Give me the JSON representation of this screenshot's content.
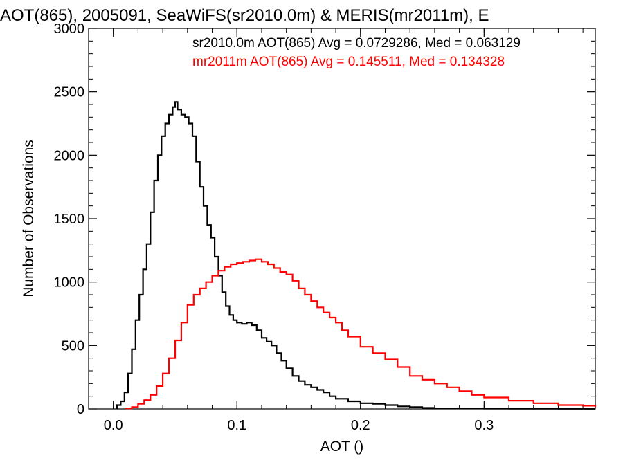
{
  "chart_data": {
    "type": "line",
    "title": "AOT(865), 2005091, SeaWiFS(sr2010.0m) & MERIS(mr2011m), E",
    "xlabel": "AOT ()",
    "ylabel": "Number of Observations",
    "xlim": [
      -0.02,
      0.39
    ],
    "ylim": [
      0,
      3000
    ],
    "xticks": [
      0.0,
      0.1,
      0.2,
      0.3
    ],
    "xtick_labels": [
      "0.0",
      "0.1",
      "0.2",
      "0.3"
    ],
    "yticks": [
      0,
      500,
      1000,
      1500,
      2000,
      2500,
      3000
    ],
    "ytick_labels": [
      "0",
      "500",
      "1000",
      "1500",
      "2000",
      "2500",
      "3000"
    ],
    "grid": false,
    "step": true,
    "series": [
      {
        "name": "sr2010.0m",
        "color": "#000000",
        "annotation": "sr2010.0m AOT(865) Avg = 0.0729286, Med = 0.063129",
        "x": [
          0.003,
          0.006,
          0.009,
          0.012,
          0.015,
          0.018,
          0.021,
          0.024,
          0.027,
          0.03,
          0.033,
          0.036,
          0.039,
          0.042,
          0.045,
          0.048,
          0.05,
          0.052,
          0.055,
          0.058,
          0.061,
          0.064,
          0.067,
          0.07,
          0.073,
          0.076,
          0.079,
          0.082,
          0.085,
          0.088,
          0.091,
          0.094,
          0.097,
          0.1,
          0.104,
          0.108,
          0.112,
          0.116,
          0.12,
          0.124,
          0.128,
          0.132,
          0.136,
          0.14,
          0.145,
          0.15,
          0.155,
          0.16,
          0.165,
          0.17,
          0.175,
          0.18,
          0.19,
          0.2,
          0.21,
          0.22,
          0.23,
          0.24,
          0.25,
          0.26,
          0.28,
          0.3,
          0.32,
          0.34,
          0.36,
          0.38,
          0.39
        ],
        "y": [
          30,
          60,
          130,
          280,
          470,
          700,
          900,
          1100,
          1300,
          1550,
          1800,
          2000,
          2150,
          2250,
          2320,
          2380,
          2420,
          2360,
          2320,
          2300,
          2250,
          2150,
          1950,
          1750,
          1600,
          1450,
          1350,
          1200,
          1050,
          920,
          810,
          740,
          700,
          680,
          670,
          680,
          660,
          620,
          560,
          530,
          500,
          440,
          380,
          320,
          260,
          220,
          190,
          170,
          150,
          130,
          100,
          80,
          60,
          45,
          40,
          30,
          20,
          14,
          8,
          5,
          4,
          3,
          2,
          2,
          1,
          1,
          1
        ]
      },
      {
        "name": "mr2011m",
        "color": "#ff0000",
        "annotation": "mr2011m AOT(865) Avg = 0.145511, Med = 0.134328",
        "x": [
          0.01,
          0.015,
          0.02,
          0.025,
          0.03,
          0.035,
          0.04,
          0.045,
          0.05,
          0.055,
          0.06,
          0.065,
          0.07,
          0.075,
          0.08,
          0.085,
          0.09,
          0.095,
          0.1,
          0.105,
          0.11,
          0.115,
          0.12,
          0.125,
          0.13,
          0.135,
          0.14,
          0.145,
          0.15,
          0.155,
          0.16,
          0.165,
          0.17,
          0.175,
          0.18,
          0.185,
          0.19,
          0.2,
          0.21,
          0.22,
          0.23,
          0.24,
          0.25,
          0.26,
          0.27,
          0.28,
          0.29,
          0.3,
          0.32,
          0.34,
          0.36,
          0.38,
          0.39
        ],
        "y": [
          5,
          15,
          40,
          70,
          110,
          180,
          280,
          400,
          540,
          680,
          820,
          900,
          950,
          1000,
          1050,
          1090,
          1120,
          1140,
          1150,
          1160,
          1170,
          1180,
          1160,
          1140,
          1110,
          1080,
          1060,
          1010,
          950,
          900,
          850,
          800,
          760,
          720,
          680,
          620,
          570,
          490,
          440,
          390,
          330,
          260,
          230,
          200,
          170,
          140,
          110,
          90,
          65,
          45,
          30,
          25,
          15
        ]
      }
    ]
  }
}
